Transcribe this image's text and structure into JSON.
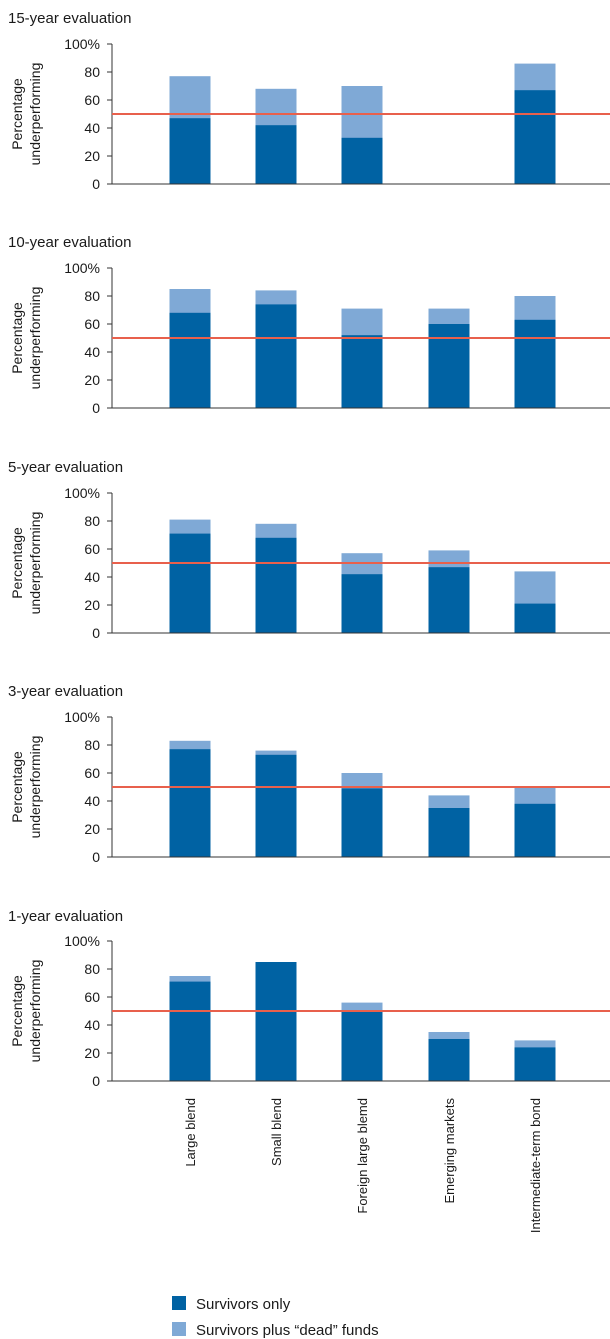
{
  "chart_data": {
    "type": "bar",
    "categories": [
      "Large blend",
      "Small blend",
      "Foreign large blemd",
      "Emerging markets",
      "Intermediate-term bond"
    ],
    "ylabel_line1": "Percentage",
    "ylabel_line2": "underperforming",
    "yticks": [
      "100%",
      "80",
      "60",
      "40",
      "20",
      "0"
    ],
    "ylim": [
      0,
      100
    ],
    "reference_line": 50,
    "colors": {
      "survivors_only": "#0062a3",
      "survivors_plus_dead": "#7fa9d6",
      "reference_line": "#e8604c",
      "axis": "#333333"
    },
    "legend": {
      "placement": "bottom",
      "survivors_only": "Survivors only",
      "survivors_plus_dead": "Survivors plus “dead” funds"
    },
    "panels": [
      {
        "title": "15-year evaluation",
        "survivors_only": [
          47,
          42,
          33,
          null,
          67
        ],
        "survivors_plus_dead": [
          77,
          68,
          70,
          null,
          86
        ]
      },
      {
        "title": "10-year evaluation",
        "survivors_only": [
          68,
          74,
          52,
          60,
          63
        ],
        "survivors_plus_dead": [
          85,
          84,
          71,
          71,
          80
        ]
      },
      {
        "title": "5-year evaluation",
        "survivors_only": [
          71,
          68,
          42,
          47,
          21
        ],
        "survivors_plus_dead": [
          81,
          78,
          57,
          59,
          44
        ]
      },
      {
        "title": "3-year evaluation",
        "survivors_only": [
          77,
          73,
          49,
          35,
          38
        ],
        "survivors_plus_dead": [
          83,
          76,
          60,
          44,
          50
        ]
      },
      {
        "title": "1-year evaluation",
        "survivors_only": [
          71,
          85,
          50,
          30,
          24
        ],
        "survivors_plus_dead": [
          75,
          85,
          56,
          35,
          29
        ]
      }
    ]
  }
}
